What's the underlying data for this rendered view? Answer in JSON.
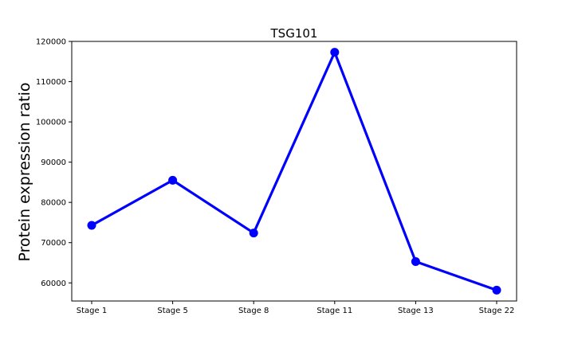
{
  "chart_data": {
    "type": "line",
    "title": "TSG101",
    "xlabel": "",
    "ylabel": "Protein expression ratio",
    "categories": [
      "Stage 1",
      "Stage 5",
      "Stage 8",
      "Stage 11",
      "Stage 13",
      "Stage 22"
    ],
    "series": [
      {
        "values": [
          74300,
          85500,
          72400,
          117300,
          65300,
          58200
        ]
      }
    ],
    "ylim": [
      55500,
      120000
    ],
    "yticks": [
      60000,
      70000,
      80000,
      90000,
      100000,
      110000,
      120000
    ],
    "ytick_labels": [
      "60000",
      "70000",
      "80000",
      "90000",
      "100000",
      "110000",
      "120000"
    ],
    "line_color": "#0000ff",
    "grid": false,
    "legend": "none"
  }
}
